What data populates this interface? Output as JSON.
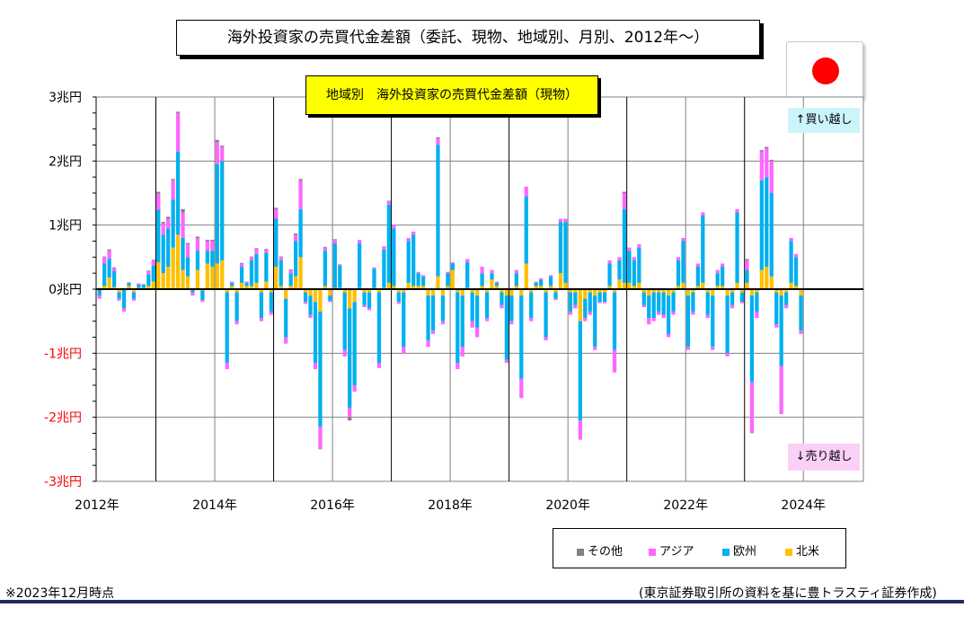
{
  "title": "海外投資家の売買代金差額（委託、現物、地域別、月別、2012年〜）",
  "subtitle": "地域別　海外投資家の売買代金差額（現物）",
  "buy_label": "↑買い越し",
  "sell_label": "↓売り越し",
  "note": "※2023年12月時点",
  "source": "(東京証券取引所の資料を基に豊トラスティ証券作成)",
  "legend": [
    {
      "name": "その他",
      "color": "#808080"
    },
    {
      "name": "アジア",
      "color": "#ff66ff"
    },
    {
      "name": "欧州",
      "color": "#00b0f0"
    },
    {
      "name": "北米",
      "color": "#ffc000"
    }
  ],
  "chart_data": {
    "type": "bar",
    "stacked": true,
    "xlabel": "",
    "ylabel": "",
    "ylim": [
      -3,
      3
    ],
    "y_ticks": [
      {
        "value": 3,
        "label": "3兆円"
      },
      {
        "value": 2,
        "label": "2兆円"
      },
      {
        "value": 1,
        "label": "1兆円"
      },
      {
        "value": 0,
        "label": "0兆円"
      },
      {
        "value": -1,
        "label": "-1兆円"
      },
      {
        "value": -2,
        "label": "-2兆円"
      },
      {
        "value": -3,
        "label": "-3兆円"
      }
    ],
    "x_ticks": [
      "2012年",
      "2014年",
      "2016年",
      "2018年",
      "2020年",
      "2022年",
      "2024年"
    ],
    "grid": true,
    "start": "2012-01",
    "series_order": [
      "北米",
      "欧州",
      "アジア",
      "その他"
    ],
    "months": [
      [
        "2012-01",
        0.02,
        -0.1,
        -0.05,
        0
      ],
      [
        "2012-02",
        0.05,
        0.35,
        0.1,
        0.01
      ],
      [
        "2012-03",
        0.18,
        0.3,
        0.12,
        0.02
      ],
      [
        "2012-04",
        0.03,
        0.25,
        0.05,
        0.01
      ],
      [
        "2012-05",
        -0.05,
        -0.1,
        -0.03,
        0
      ],
      [
        "2012-06",
        0.02,
        -0.3,
        -0.05,
        0
      ],
      [
        "2012-07",
        0.05,
        0.05,
        0.01,
        0
      ],
      [
        "2012-08",
        -0.05,
        -0.1,
        -0.03,
        0
      ],
      [
        "2012-09",
        0.02,
        0.05,
        0.02,
        0
      ],
      [
        "2012-10",
        0.02,
        0.05,
        0.01,
        0
      ],
      [
        "2012-11",
        0.05,
        0.18,
        0.05,
        0.01
      ],
      [
        "2012-12",
        0.12,
        0.25,
        0.08,
        0.01
      ],
      [
        "2013-01",
        0.42,
        0.82,
        0.25,
        0.03
      ],
      [
        "2013-02",
        0.25,
        0.6,
        0.18,
        0.02
      ],
      [
        "2013-03",
        0.35,
        0.6,
        0.15,
        0.03
      ],
      [
        "2013-04",
        0.65,
        0.75,
        0.3,
        0.02
      ],
      [
        "2013-05",
        0.85,
        1.3,
        0.6,
        0.02
      ],
      [
        "2013-06",
        0.3,
        0.5,
        0.4,
        0.05
      ],
      [
        "2013-07",
        0.2,
        0.3,
        0.2,
        0.02
      ],
      [
        "2013-08",
        0.02,
        -0.05,
        -0.05,
        0
      ],
      [
        "2013-09",
        0.3,
        0.3,
        0.2,
        0.02
      ],
      [
        "2013-10",
        -0.02,
        -0.15,
        -0.03,
        0
      ],
      [
        "2013-11",
        0.4,
        0.2,
        0.15,
        0.02
      ],
      [
        "2013-12",
        0.35,
        0.25,
        0.15,
        0.02
      ],
      [
        "2014-01",
        0.4,
        1.55,
        0.35,
        0.03
      ],
      [
        "2014-02",
        0.45,
        1.55,
        0.22,
        0.02
      ],
      [
        "2014-03",
        -0.05,
        -1.1,
        -0.1,
        0
      ],
      [
        "2014-04",
        0.05,
        0.05,
        0.02,
        0
      ],
      [
        "2014-05",
        -0.05,
        -0.45,
        -0.05,
        0
      ],
      [
        "2014-06",
        0.1,
        0.25,
        0.05,
        0.01
      ],
      [
        "2014-07",
        0.05,
        0.05,
        0.02,
        0
      ],
      [
        "2014-08",
        0.05,
        0.4,
        0.05,
        0.01
      ],
      [
        "2014-09",
        0.1,
        0.45,
        0.08,
        0.01
      ],
      [
        "2014-10",
        -0.05,
        -0.4,
        -0.05,
        0
      ],
      [
        "2014-11",
        0.12,
        0.45,
        0.05,
        0.01
      ],
      [
        "2014-12",
        -0.05,
        -0.3,
        -0.05,
        0
      ],
      [
        "2015-01",
        0.35,
        0.75,
        0.15,
        0.02
      ],
      [
        "2015-02",
        0.05,
        0.4,
        0.05,
        0.01
      ],
      [
        "2015-03",
        -0.15,
        -0.6,
        -0.1,
        0
      ],
      [
        "2015-04",
        0.05,
        0.2,
        0.05,
        0.01
      ],
      [
        "2015-05",
        0.2,
        0.55,
        0.1,
        0.02
      ],
      [
        "2015-06",
        0.5,
        0.75,
        0.45,
        0.02
      ],
      [
        "2015-07",
        -0.05,
        -0.15,
        -0.03,
        0
      ],
      [
        "2015-08",
        -0.1,
        -0.3,
        -0.05,
        0
      ],
      [
        "2015-09",
        -0.2,
        -0.95,
        -0.1,
        0
      ],
      [
        "2015-10",
        -0.35,
        -1.8,
        -0.35,
        0
      ],
      [
        "2015-11",
        0.05,
        0.55,
        0.05,
        0.01
      ],
      [
        "2015-12",
        -0.1,
        -0.08,
        -0.02,
        0
      ],
      [
        "2016-01",
        0.02,
        0.7,
        0.05,
        0.01
      ],
      [
        "2016-02",
        0.02,
        0.35,
        0.02,
        0
      ],
      [
        "2016-03",
        -0.05,
        -0.9,
        -0.1,
        0
      ],
      [
        "2016-04",
        -0.3,
        -1.55,
        -0.15,
        -0.05
      ],
      [
        "2016-05",
        -0.2,
        -1.3,
        -0.1,
        0
      ],
      [
        "2016-06",
        0.02,
        0.7,
        0.05,
        0
      ],
      [
        "2016-07",
        -0.05,
        -0.2,
        -0.03,
        0
      ],
      [
        "2016-08",
        -0.05,
        -0.25,
        -0.03,
        0
      ],
      [
        "2016-09",
        0.02,
        0.3,
        0.02,
        0
      ],
      [
        "2016-10",
        -0.05,
        -1.1,
        -0.08,
        0
      ],
      [
        "2016-11",
        0.02,
        0.6,
        0.05,
        0
      ],
      [
        "2016-12",
        0.1,
        1.22,
        0.05,
        0.01
      ],
      [
        "2017-01",
        0.05,
        0.9,
        0.05,
        0
      ],
      [
        "2017-02",
        -0.05,
        -0.15,
        -0.03,
        0
      ],
      [
        "2017-03",
        -0.05,
        -0.85,
        -0.1,
        0
      ],
      [
        "2017-04",
        0.1,
        0.65,
        0.05,
        0
      ],
      [
        "2017-05",
        0.05,
        0.8,
        0.05,
        0
      ],
      [
        "2017-06",
        0.05,
        0.2,
        0.02,
        0
      ],
      [
        "2017-07",
        0.05,
        0.15,
        0.02,
        0
      ],
      [
        "2017-08",
        -0.1,
        -0.7,
        -0.1,
        0
      ],
      [
        "2017-09",
        -0.1,
        -0.55,
        -0.05,
        0
      ],
      [
        "2017-10",
        0.2,
        2.05,
        0.1,
        0.02
      ],
      [
        "2017-11",
        -0.1,
        -0.4,
        -0.05,
        0
      ],
      [
        "2017-12",
        0.05,
        0.2,
        0.02,
        0
      ],
      [
        "2018-01",
        0.3,
        0.1,
        0.02,
        0
      ],
      [
        "2018-02",
        -0.05,
        -1.1,
        -0.1,
        0
      ],
      [
        "2018-03",
        -0.1,
        -0.8,
        -0.15,
        0
      ],
      [
        "2018-04",
        0.02,
        0.4,
        0.05,
        0
      ],
      [
        "2018-05",
        -0.05,
        -0.45,
        -0.1,
        0
      ],
      [
        "2018-06",
        -0.1,
        -0.5,
        -0.15,
        0
      ],
      [
        "2018-07",
        0.05,
        0.2,
        0.1,
        0
      ],
      [
        "2018-08",
        -0.05,
        -0.4,
        -0.05,
        0
      ],
      [
        "2018-09",
        0.15,
        0.1,
        0.05,
        0
      ],
      [
        "2018-10",
        0.05,
        0.05,
        0.02,
        0
      ],
      [
        "2018-11",
        -0.05,
        -0.2,
        -0.05,
        0
      ],
      [
        "2018-12",
        -0.1,
        -1.0,
        -0.05,
        0
      ],
      [
        "2019-01",
        -0.1,
        -0.4,
        -0.05,
        0
      ],
      [
        "2019-02",
        0.05,
        0.2,
        0.05,
        0
      ],
      [
        "2019-03",
        -0.1,
        -1.3,
        -0.3,
        0
      ],
      [
        "2019-04",
        0.4,
        1.05,
        0.15,
        0
      ],
      [
        "2019-05",
        -0.05,
        -0.4,
        -0.05,
        0
      ],
      [
        "2019-06",
        0.05,
        0.05,
        0.02,
        0
      ],
      [
        "2019-07",
        0.05,
        0.1,
        0.02,
        0
      ],
      [
        "2019-08",
        -0.05,
        -0.7,
        -0.05,
        0
      ],
      [
        "2019-09",
        0.05,
        0.15,
        0.02,
        0
      ],
      [
        "2019-10",
        -0.05,
        -0.1,
        -0.02,
        0
      ],
      [
        "2019-11",
        0.25,
        0.8,
        0.05,
        0
      ],
      [
        "2019-12",
        0.1,
        0.95,
        0.05,
        0
      ],
      [
        "2020-01",
        -0.05,
        -0.3,
        -0.05,
        0
      ],
      [
        "2020-02",
        -0.05,
        -0.2,
        -0.05,
        0
      ],
      [
        "2020-03",
        -0.5,
        -1.55,
        -0.3,
        0
      ],
      [
        "2020-04",
        -0.15,
        -0.3,
        -0.05,
        0
      ],
      [
        "2020-05",
        -0.05,
        -0.3,
        -0.05,
        0
      ],
      [
        "2020-06",
        -0.1,
        -0.8,
        -0.05,
        0
      ],
      [
        "2020-07",
        -0.05,
        -0.15,
        -0.02,
        0
      ],
      [
        "2020-08",
        -0.05,
        -0.15,
        -0.02,
        0
      ],
      [
        "2020-09",
        0.05,
        0.35,
        0.05,
        0
      ],
      [
        "2020-10",
        -0.05,
        -0.9,
        -0.35,
        0
      ],
      [
        "2020-11",
        0.15,
        0.3,
        0.05,
        0
      ],
      [
        "2020-12",
        0.1,
        1.15,
        0.25,
        0.02
      ],
      [
        "2021-01",
        0.1,
        0.5,
        0.05,
        0
      ],
      [
        "2021-02",
        0.05,
        0.4,
        0.05,
        0
      ],
      [
        "2021-03",
        0.1,
        0.55,
        0.05,
        0
      ],
      [
        "2021-04",
        -0.05,
        -0.2,
        -0.03,
        0
      ],
      [
        "2021-05",
        -0.1,
        -0.35,
        -0.1,
        0
      ],
      [
        "2021-06",
        -0.05,
        -0.4,
        -0.05,
        0
      ],
      [
        "2021-07",
        -0.05,
        -0.3,
        -0.05,
        0
      ],
      [
        "2021-08",
        -0.05,
        -0.35,
        -0.05,
        0
      ],
      [
        "2021-09",
        -0.1,
        -0.6,
        -0.05,
        0
      ],
      [
        "2021-10",
        -0.05,
        -0.3,
        -0.05,
        0
      ],
      [
        "2021-11",
        0.05,
        0.4,
        0.05,
        0
      ],
      [
        "2021-12",
        0.1,
        0.65,
        0.05,
        0
      ],
      [
        "2022-01",
        -0.1,
        -0.8,
        -0.05,
        0
      ],
      [
        "2022-02",
        -0.05,
        -0.3,
        -0.05,
        0
      ],
      [
        "2022-03",
        0.05,
        0.3,
        0.05,
        0
      ],
      [
        "2022-04",
        0.1,
        1.05,
        0.05,
        0
      ],
      [
        "2022-05",
        -0.05,
        -0.35,
        -0.05,
        0
      ],
      [
        "2022-06",
        -0.1,
        -0.8,
        -0.05,
        0
      ],
      [
        "2022-07",
        0.05,
        0.2,
        0.05,
        0
      ],
      [
        "2022-08",
        0.05,
        0.3,
        0.05,
        0
      ],
      [
        "2022-09",
        -0.1,
        -0.9,
        -0.05,
        0
      ],
      [
        "2022-10",
        -0.05,
        -0.2,
        -0.05,
        0
      ],
      [
        "2022-11",
        0.1,
        1.1,
        0.05,
        0
      ],
      [
        "2022-12",
        -0.05,
        -0.15,
        -0.02,
        0
      ],
      [
        "2023-01",
        0.1,
        0.2,
        0.15,
        0.02
      ],
      [
        "2023-02",
        -0.1,
        -1.35,
        -0.8,
        0
      ],
      [
        "2023-03",
        -0.05,
        -0.3,
        -0.1,
        0
      ],
      [
        "2023-04",
        0.3,
        1.4,
        0.45,
        0.02
      ],
      [
        "2023-05",
        0.35,
        1.4,
        0.45,
        0.02
      ],
      [
        "2023-06",
        0.2,
        1.3,
        0.5,
        0.02
      ],
      [
        "2023-07",
        -0.05,
        -0.5,
        -0.05,
        0
      ],
      [
        "2023-08",
        -0.1,
        -1.1,
        -0.75,
        0
      ],
      [
        "2023-09",
        -0.05,
        -0.2,
        -0.05,
        0
      ],
      [
        "2023-10",
        0.1,
        0.65,
        0.05,
        0
      ],
      [
        "2023-11",
        0.05,
        0.45,
        0.05,
        0
      ],
      [
        "2023-12",
        -0.1,
        -0.55,
        -0.05,
        0
      ]
    ]
  }
}
